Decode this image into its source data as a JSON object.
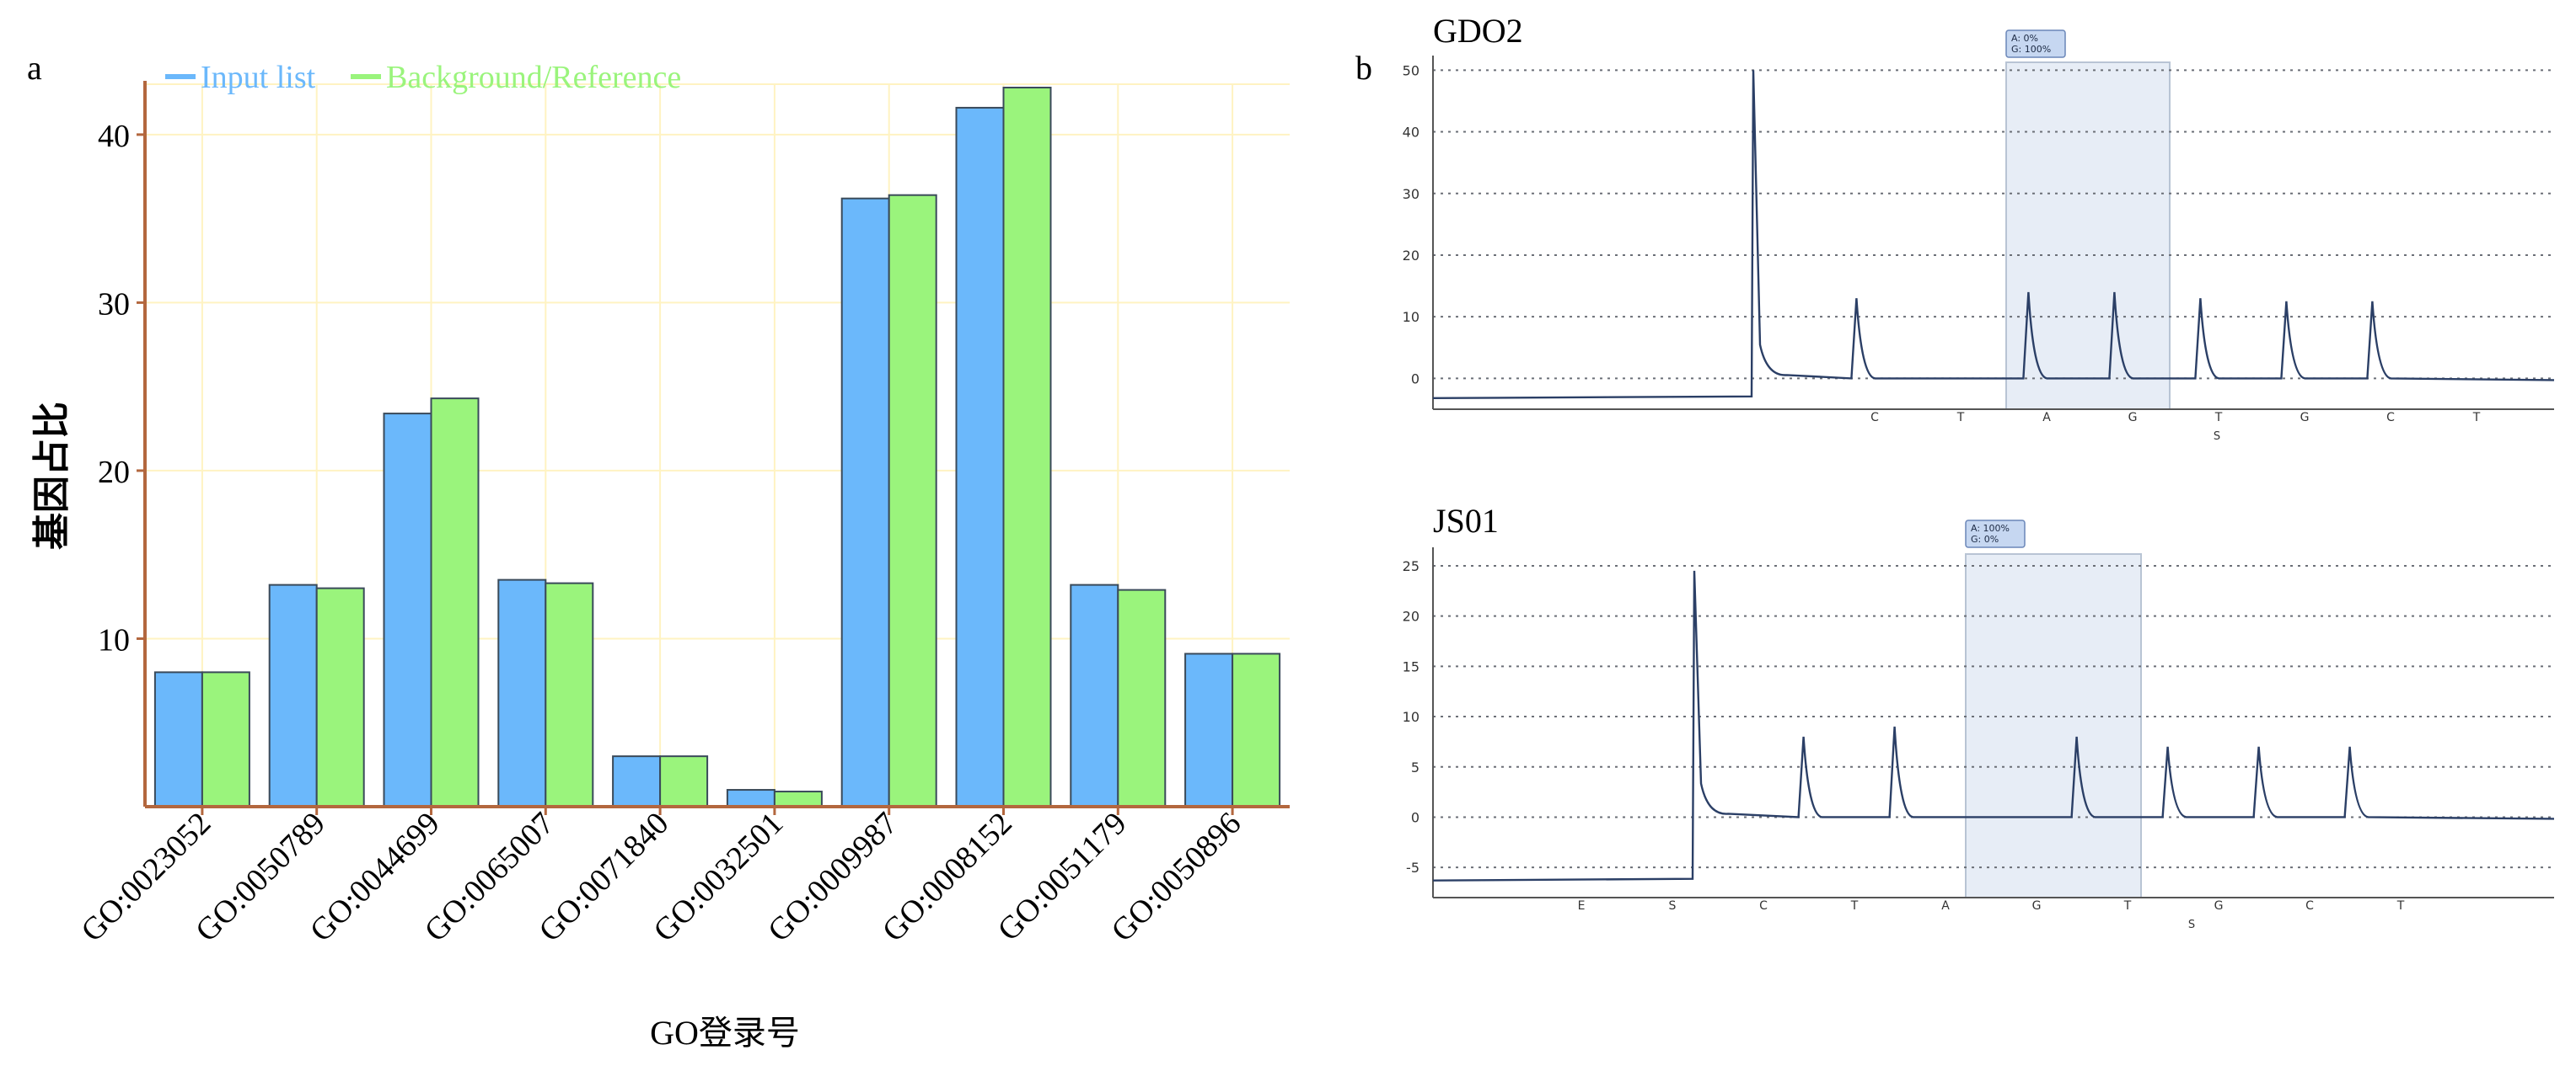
{
  "panel_a": {
    "label": "a",
    "colors": {
      "input": "#6bb8fb",
      "reference": "#9af47c",
      "axis": "#b3673e",
      "grid": "#fff3c2"
    },
    "chart_data": {
      "type": "bar",
      "categories": [
        "GO:0023052",
        "GO:0050789",
        "GO:0044699",
        "GO:0065007",
        "GO:0071840",
        "GO:0032501",
        "GO:0009987",
        "GO:0008152",
        "GO:0051179",
        "GO:0050896"
      ],
      "series": [
        {
          "name": "Input list",
          "values": [
            8.0,
            13.2,
            23.4,
            13.5,
            3.0,
            1.0,
            36.2,
            41.6,
            13.2,
            9.1
          ]
        },
        {
          "name": "Background/Reference",
          "values": [
            8.0,
            13.0,
            24.3,
            13.3,
            3.0,
            0.9,
            36.4,
            42.8,
            12.9,
            9.1
          ]
        }
      ],
      "xlabel": "GO登录号",
      "ylabel": "基因占比",
      "ylim": [
        0,
        43
      ],
      "yticks": [
        10,
        20,
        30,
        40
      ],
      "grid": true,
      "legend_position": "top-left"
    }
  },
  "panel_b": {
    "label": "b",
    "traces": [
      {
        "title": "GDO2",
        "yticks": [
          "50",
          "40",
          "30",
          "20",
          "10",
          "0"
        ],
        "tick_values": [
          50,
          40,
          30,
          20,
          10,
          0
        ],
        "ylim": [
          -5,
          51
        ],
        "baseline_left": -3.2,
        "x_letters": [
          "C",
          "T",
          "A",
          "G",
          "T",
          "G",
          "C",
          "T"
        ],
        "sub_label": "S",
        "highlight_text": [
          "A: 0%",
          "G: 100%"
        ],
        "peaks": [
          {
            "height": 50,
            "width": "main"
          },
          {
            "height": 13
          },
          {
            "height": 0
          },
          {
            "height": 14
          },
          {
            "height": 14
          },
          {
            "height": 13
          },
          {
            "height": 12.5
          },
          {
            "height": 12.5
          }
        ]
      },
      {
        "title": "JS01",
        "yticks": [
          "25",
          "20",
          "15",
          "10",
          "5",
          "0",
          "-5"
        ],
        "tick_values": [
          25,
          20,
          15,
          10,
          5,
          0,
          -5
        ],
        "ylim": [
          -8,
          26
        ],
        "baseline_left": -6.3,
        "x_letters": [
          "E",
          "S",
          "C",
          "T",
          "A",
          "G",
          "T",
          "G",
          "C",
          "T"
        ],
        "sub_label": "S",
        "highlight_text": [
          "A: 100%",
          "G: 0%"
        ],
        "peaks": [
          {
            "height": 24.5,
            "width": "main"
          },
          {
            "height": 8
          },
          {
            "height": 9
          },
          {
            "height": 0
          },
          {
            "height": 8
          },
          {
            "height": 7
          },
          {
            "height": 7
          },
          {
            "height": 7
          }
        ]
      }
    ]
  }
}
